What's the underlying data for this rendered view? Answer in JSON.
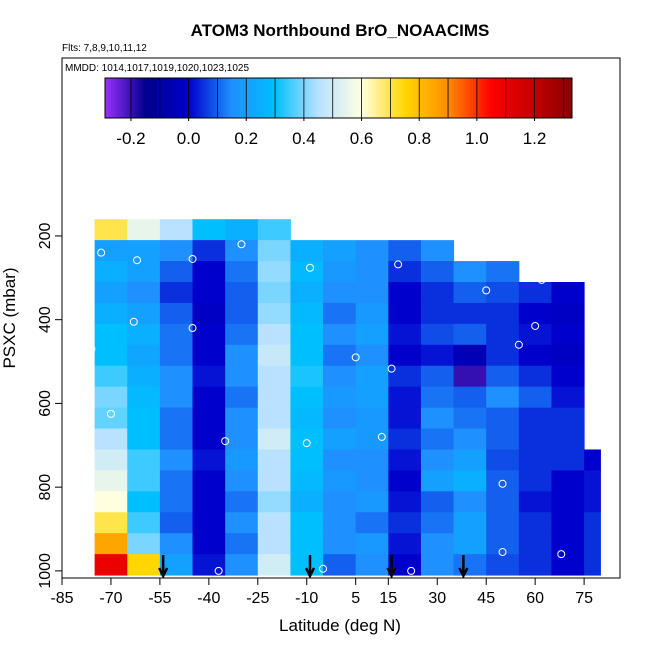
{
  "chart_data": {
    "type": "curtain",
    "title": "ATOM3 Northbound BrO_NOAACIMS",
    "subtitle": "Flts: 7,8,9,10,11,12",
    "annotation": "MMDD: 1014,1017,1019,1020,1023,1025",
    "x_label": "Latitude (deg N)",
    "y_label": "PSXC (mbar)",
    "xlim": [
      -85,
      86
    ],
    "xticks": [
      -85,
      -70,
      -55,
      -40,
      -25,
      -10,
      5,
      15,
      30,
      45,
      60,
      75
    ],
    "ylim": [
      -225,
      1017
    ],
    "yticks": [
      200,
      400,
      600,
      800,
      1000
    ],
    "clim": [
      -0.29,
      1.33
    ],
    "cticks": [
      -0.2,
      {
        "value": 0,
        "label": "0.0"
      },
      0.2,
      0.4,
      0.6,
      0.8,
      {
        "value": 1,
        "label": "1.0"
      },
      1.2
    ],
    "colorscale": [
      [
        -0.3,
        "#9b30ff"
      ],
      [
        -0.15,
        "#00008b"
      ],
      [
        0.0,
        "#0000cd"
      ],
      [
        0.15,
        "#1e90ff"
      ],
      [
        0.3,
        "#00bfff"
      ],
      [
        0.45,
        "#b8e2ff"
      ],
      [
        0.6,
        "#ffffe0"
      ],
      [
        0.75,
        "#ffd700"
      ],
      [
        0.9,
        "#ff8c00"
      ],
      [
        1.05,
        "#ff0000"
      ],
      [
        1.35,
        "#8b0000"
      ]
    ],
    "lat_edges": [
      -75,
      -65,
      -55,
      -45,
      -35,
      -25,
      -15,
      -5,
      5,
      15,
      25,
      35,
      45,
      55,
      65,
      75,
      80
    ],
    "rows": [
      {
        "p": [
          160,
          210
        ],
        "values": [
          0.7,
          0.55,
          0.45,
          0.3,
          0.25,
          0.35,
          null,
          null,
          null,
          null,
          null,
          null,
          null,
          null,
          null,
          null
        ]
      },
      {
        "p": [
          210,
          260
        ],
        "values": [
          0.2,
          0.2,
          0.15,
          0.05,
          0.15,
          0.4,
          0.25,
          0.2,
          0.15,
          0.1,
          0.15,
          null,
          null,
          null,
          null,
          null
        ]
      },
      {
        "p": [
          260,
          310
        ],
        "values": [
          0.25,
          0.2,
          0.1,
          0.0,
          0.12,
          0.42,
          0.28,
          0.18,
          0.15,
          0.05,
          0.1,
          0.15,
          0.12,
          null,
          null,
          null
        ]
      },
      {
        "p": [
          310,
          360
        ],
        "values": [
          0.2,
          0.15,
          0.05,
          0.0,
          0.1,
          0.4,
          0.25,
          0.15,
          0.15,
          0.0,
          0.05,
          0.1,
          0.08,
          0.05,
          0.0,
          null
        ]
      },
      {
        "p": [
          360,
          410
        ],
        "values": [
          0.25,
          0.2,
          0.1,
          -0.02,
          0.1,
          0.42,
          0.28,
          0.12,
          0.18,
          0.0,
          0.05,
          0.05,
          0.05,
          0.0,
          -0.02,
          null
        ]
      },
      {
        "p": [
          410,
          460
        ],
        "values": [
          0.3,
          0.25,
          0.12,
          0.0,
          0.12,
          0.45,
          0.3,
          0.15,
          0.2,
          0.02,
          0.08,
          0.1,
          0.05,
          0.02,
          0.0,
          null
        ]
      },
      {
        "p": [
          460,
          510
        ],
        "values": [
          0.3,
          0.22,
          0.12,
          0.0,
          0.15,
          0.48,
          0.3,
          0.12,
          0.15,
          0.0,
          0.02,
          -0.05,
          0.05,
          0.0,
          -0.02,
          null
        ]
      },
      {
        "p": [
          510,
          560
        ],
        "values": [
          0.35,
          0.25,
          0.15,
          0.02,
          0.15,
          0.45,
          0.32,
          0.15,
          0.2,
          0.05,
          0.1,
          -0.2,
          0.1,
          0.05,
          0.0,
          null
        ]
      },
      {
        "p": [
          560,
          610
        ],
        "values": [
          0.4,
          0.28,
          0.15,
          0.0,
          0.12,
          0.45,
          0.3,
          0.18,
          0.2,
          0.02,
          0.12,
          0.1,
          0.15,
          0.1,
          0.02,
          null
        ]
      },
      {
        "p": [
          610,
          660
        ],
        "values": [
          0.38,
          0.3,
          0.12,
          0.0,
          0.15,
          0.45,
          0.28,
          0.15,
          0.18,
          0.02,
          0.15,
          0.12,
          0.1,
          0.05,
          0.05,
          null
        ]
      },
      {
        "p": [
          660,
          710
        ],
        "values": [
          0.45,
          0.3,
          0.12,
          0.0,
          0.15,
          0.5,
          0.3,
          0.2,
          0.18,
          0.05,
          0.12,
          0.15,
          0.1,
          0.05,
          0.05,
          null
        ]
      },
      {
        "p": [
          710,
          760
        ],
        "values": [
          0.5,
          0.35,
          0.15,
          0.02,
          0.18,
          0.45,
          0.3,
          0.15,
          0.15,
          0.02,
          0.15,
          0.2,
          0.08,
          0.05,
          0.05,
          0.0
        ]
      },
      {
        "p": [
          760,
          810
        ],
        "values": [
          0.55,
          0.35,
          0.12,
          0.0,
          0.15,
          0.45,
          0.28,
          0.18,
          0.15,
          0.0,
          0.2,
          0.25,
          0.1,
          0.05,
          0.0,
          0.02
        ]
      },
      {
        "p": [
          810,
          860
        ],
        "values": [
          0.6,
          0.3,
          0.12,
          0.0,
          0.12,
          0.42,
          0.25,
          0.15,
          0.18,
          0.02,
          0.1,
          0.15,
          0.1,
          0.02,
          0.0,
          0.02
        ]
      },
      {
        "p": [
          860,
          910
        ],
        "values": [
          0.7,
          0.35,
          0.1,
          0.0,
          0.15,
          0.45,
          0.3,
          0.15,
          0.12,
          0.05,
          0.12,
          0.2,
          0.1,
          0.05,
          0.0,
          0.05
        ]
      },
      {
        "p": [
          910,
          960
        ],
        "values": [
          0.85,
          0.4,
          0.15,
          0.0,
          0.12,
          0.45,
          0.3,
          0.15,
          0.18,
          0.02,
          0.15,
          0.2,
          0.1,
          0.05,
          0.0,
          0.05
        ]
      },
      {
        "p": [
          960,
          1010
        ],
        "values": [
          1.1,
          0.75,
          0.2,
          0.02,
          0.15,
          0.5,
          0.3,
          0.1,
          0.15,
          0.0,
          0.15,
          0.12,
          0.08,
          0.05,
          0.0,
          0.05
        ]
      }
    ],
    "points": {
      "lat": [
        -73,
        -62,
        -45,
        -30,
        -13,
        -9,
        18,
        45,
        62,
        -76,
        -63,
        -45,
        5,
        16,
        60,
        55,
        -70,
        -35,
        -10,
        13,
        50,
        -78,
        -37,
        -5,
        22,
        50,
        68
      ],
      "p": [
        240,
        258,
        255,
        220,
        197,
        276,
        268,
        330,
        305,
        470,
        405,
        420,
        490,
        517,
        415,
        460,
        625,
        690,
        695,
        680,
        792,
        960,
        1000,
        995,
        1000,
        955,
        960
      ]
    },
    "arrows": [
      -54,
      -9,
      16,
      38
    ]
  }
}
